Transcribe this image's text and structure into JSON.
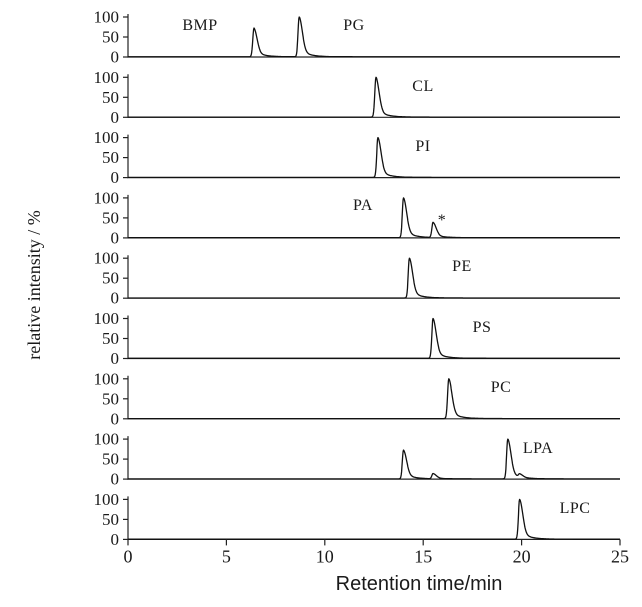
{
  "chart_data": {
    "type": "line",
    "xlabel": "Retention time/min",
    "ylabel": "relative intensity / %",
    "xlim": [
      0,
      25
    ],
    "x_ticks": [
      "0",
      "5",
      "10",
      "15",
      "20",
      "25"
    ],
    "y_ticks": [
      "0",
      "50",
      "100"
    ],
    "ylim": [
      0,
      100
    ],
    "grid": false,
    "panels": [
      {
        "name": "BMP",
        "label2": "PG",
        "peaks": [
          {
            "x": 6.4,
            "y": 72
          },
          {
            "x": 8.7,
            "y": 100
          }
        ]
      },
      {
        "name": "CL",
        "peaks": [
          {
            "x": 12.6,
            "y": 100
          }
        ]
      },
      {
        "name": "PI",
        "peaks": [
          {
            "x": 12.7,
            "y": 100
          }
        ]
      },
      {
        "name": "PA",
        "annotation": "*",
        "peaks": [
          {
            "x": 14.0,
            "y": 100
          },
          {
            "x": 15.5,
            "y": 38
          }
        ]
      },
      {
        "name": "PE",
        "peaks": [
          {
            "x": 14.3,
            "y": 100
          }
        ]
      },
      {
        "name": "PS",
        "peaks": [
          {
            "x": 15.5,
            "y": 100
          }
        ]
      },
      {
        "name": "PC",
        "peaks": [
          {
            "x": 16.3,
            "y": 100
          }
        ]
      },
      {
        "name": "LPA",
        "peaks": [
          {
            "x": 14.0,
            "y": 72
          },
          {
            "x": 15.5,
            "y": 13
          },
          {
            "x": 19.3,
            "y": 100
          },
          {
            "x": 19.9,
            "y": 8
          }
        ]
      },
      {
        "name": "LPC",
        "peaks": [
          {
            "x": 19.9,
            "y": 100
          }
        ]
      }
    ]
  }
}
